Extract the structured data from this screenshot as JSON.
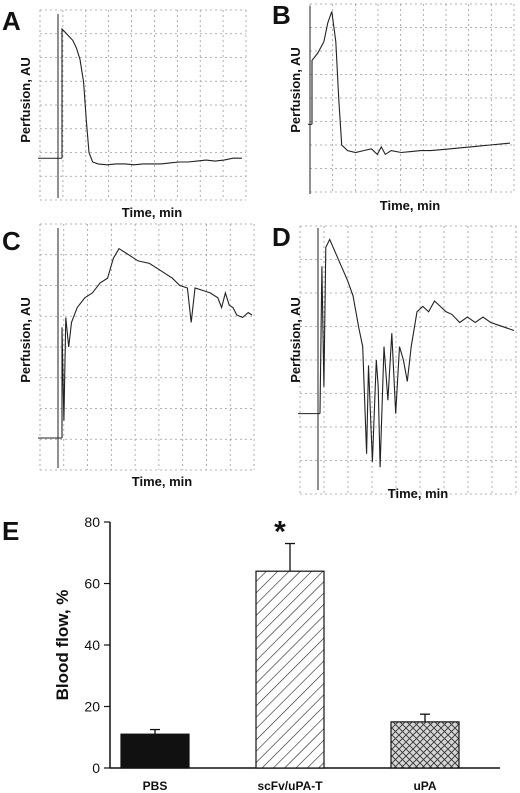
{
  "panels": [
    {
      "letter": "A",
      "ylabel": "Perfusion, AU",
      "xlabel": "Time, min",
      "baseline": 0.22,
      "trace": [
        [
          0,
          0.9
        ],
        [
          0.02,
          0.88
        ],
        [
          0.04,
          0.86
        ],
        [
          0.06,
          0.84
        ],
        [
          0.08,
          0.8
        ],
        [
          0.1,
          0.74
        ],
        [
          0.12,
          0.62
        ],
        [
          0.135,
          0.42
        ],
        [
          0.15,
          0.25
        ],
        [
          0.17,
          0.2
        ],
        [
          0.2,
          0.19
        ],
        [
          0.25,
          0.185
        ],
        [
          0.3,
          0.19
        ],
        [
          0.35,
          0.19
        ],
        [
          0.4,
          0.185
        ],
        [
          0.45,
          0.19
        ],
        [
          0.5,
          0.19
        ],
        [
          0.55,
          0.19
        ],
        [
          0.6,
          0.195
        ],
        [
          0.65,
          0.2
        ],
        [
          0.7,
          0.2
        ],
        [
          0.75,
          0.205
        ],
        [
          0.8,
          0.21
        ],
        [
          0.85,
          0.205
        ],
        [
          0.9,
          0.21
        ],
        [
          0.95,
          0.22
        ],
        [
          1.0,
          0.22
        ]
      ]
    },
    {
      "letter": "B",
      "ylabel": "Perfusion, AU",
      "xlabel": "Time, min",
      "baseline": 0.36,
      "trace": [
        [
          0,
          0.7
        ],
        [
          0.03,
          0.74
        ],
        [
          0.06,
          0.8
        ],
        [
          0.08,
          0.9
        ],
        [
          0.1,
          0.96
        ],
        [
          0.12,
          0.8
        ],
        [
          0.135,
          0.5
        ],
        [
          0.15,
          0.25
        ],
        [
          0.18,
          0.22
        ],
        [
          0.22,
          0.21
        ],
        [
          0.26,
          0.22
        ],
        [
          0.3,
          0.23
        ],
        [
          0.33,
          0.2
        ],
        [
          0.35,
          0.24
        ],
        [
          0.37,
          0.2
        ],
        [
          0.4,
          0.22
        ],
        [
          0.45,
          0.21
        ],
        [
          0.5,
          0.215
        ],
        [
          0.55,
          0.22
        ],
        [
          0.6,
          0.22
        ],
        [
          0.65,
          0.225
        ],
        [
          0.7,
          0.23
        ],
        [
          0.75,
          0.235
        ],
        [
          0.8,
          0.24
        ],
        [
          0.85,
          0.245
        ],
        [
          0.9,
          0.25
        ],
        [
          0.95,
          0.255
        ],
        [
          1.0,
          0.26
        ]
      ]
    },
    {
      "letter": "C",
      "ylabel": "Perfusion, AU",
      "xlabel": "Time, min",
      "baseline": 0.13,
      "trace": [
        [
          0,
          0.58
        ],
        [
          0.01,
          0.2
        ],
        [
          0.02,
          0.62
        ],
        [
          0.035,
          0.5
        ],
        [
          0.05,
          0.6
        ],
        [
          0.08,
          0.66
        ],
        [
          0.12,
          0.7
        ],
        [
          0.16,
          0.72
        ],
        [
          0.2,
          0.76
        ],
        [
          0.24,
          0.78
        ],
        [
          0.27,
          0.86
        ],
        [
          0.3,
          0.9
        ],
        [
          0.34,
          0.88
        ],
        [
          0.4,
          0.85
        ],
        [
          0.46,
          0.84
        ],
        [
          0.52,
          0.81
        ],
        [
          0.58,
          0.78
        ],
        [
          0.62,
          0.75
        ],
        [
          0.66,
          0.74
        ],
        [
          0.68,
          0.6
        ],
        [
          0.7,
          0.74
        ],
        [
          0.74,
          0.73
        ],
        [
          0.78,
          0.72
        ],
        [
          0.82,
          0.7
        ],
        [
          0.84,
          0.66
        ],
        [
          0.86,
          0.72
        ],
        [
          0.88,
          0.67
        ],
        [
          0.9,
          0.66
        ],
        [
          0.92,
          0.63
        ],
        [
          0.95,
          0.62
        ],
        [
          0.98,
          0.64
        ],
        [
          1.0,
          0.63
        ]
      ]
    },
    {
      "letter": "D",
      "ylabel": "Perfusion, AU",
      "xlabel": "Time, min",
      "baseline": 0.3,
      "trace": [
        [
          0,
          0.3
        ],
        [
          0.01,
          0.85
        ],
        [
          0.02,
          0.4
        ],
        [
          0.03,
          0.92
        ],
        [
          0.05,
          0.95
        ],
        [
          0.08,
          0.9
        ],
        [
          0.11,
          0.85
        ],
        [
          0.14,
          0.8
        ],
        [
          0.17,
          0.74
        ],
        [
          0.2,
          0.62
        ],
        [
          0.22,
          0.55
        ],
        [
          0.24,
          0.15
        ],
        [
          0.25,
          0.48
        ],
        [
          0.27,
          0.12
        ],
        [
          0.29,
          0.5
        ],
        [
          0.3,
          0.4
        ],
        [
          0.31,
          0.1
        ],
        [
          0.33,
          0.55
        ],
        [
          0.35,
          0.35
        ],
        [
          0.37,
          0.6
        ],
        [
          0.39,
          0.3
        ],
        [
          0.41,
          0.55
        ],
        [
          0.43,
          0.5
        ],
        [
          0.45,
          0.42
        ],
        [
          0.47,
          0.55
        ],
        [
          0.5,
          0.68
        ],
        [
          0.53,
          0.7
        ],
        [
          0.56,
          0.68
        ],
        [
          0.59,
          0.72
        ],
        [
          0.62,
          0.7
        ],
        [
          0.65,
          0.68
        ],
        [
          0.68,
          0.67
        ],
        [
          0.72,
          0.64
        ],
        [
          0.76,
          0.66
        ],
        [
          0.8,
          0.64
        ],
        [
          0.84,
          0.66
        ],
        [
          0.88,
          0.64
        ],
        [
          0.92,
          0.63
        ],
        [
          0.96,
          0.62
        ],
        [
          1.0,
          0.61
        ]
      ]
    }
  ],
  "bar_panel_letter": "E",
  "chart_data": {
    "type": "bar",
    "categories": [
      "PBS",
      "scFv/uPA-T",
      "uPA"
    ],
    "values": [
      11,
      64,
      15
    ],
    "errors": [
      1.5,
      9,
      2.5
    ],
    "patterns": [
      "solid",
      "diagonal",
      "crosshatch"
    ],
    "xlabel": "",
    "ylabel": "Blood flow, %",
    "ylim": [
      0,
      80
    ],
    "yticks": [
      0,
      20,
      40,
      60,
      80
    ],
    "annotation": "*",
    "grid": false
  },
  "colors": {
    "bar_solid": "#111111",
    "bar_hatch_bg": "#ffffff",
    "crosshatch_bg": "#d6d6d6",
    "ink": "#111111"
  }
}
